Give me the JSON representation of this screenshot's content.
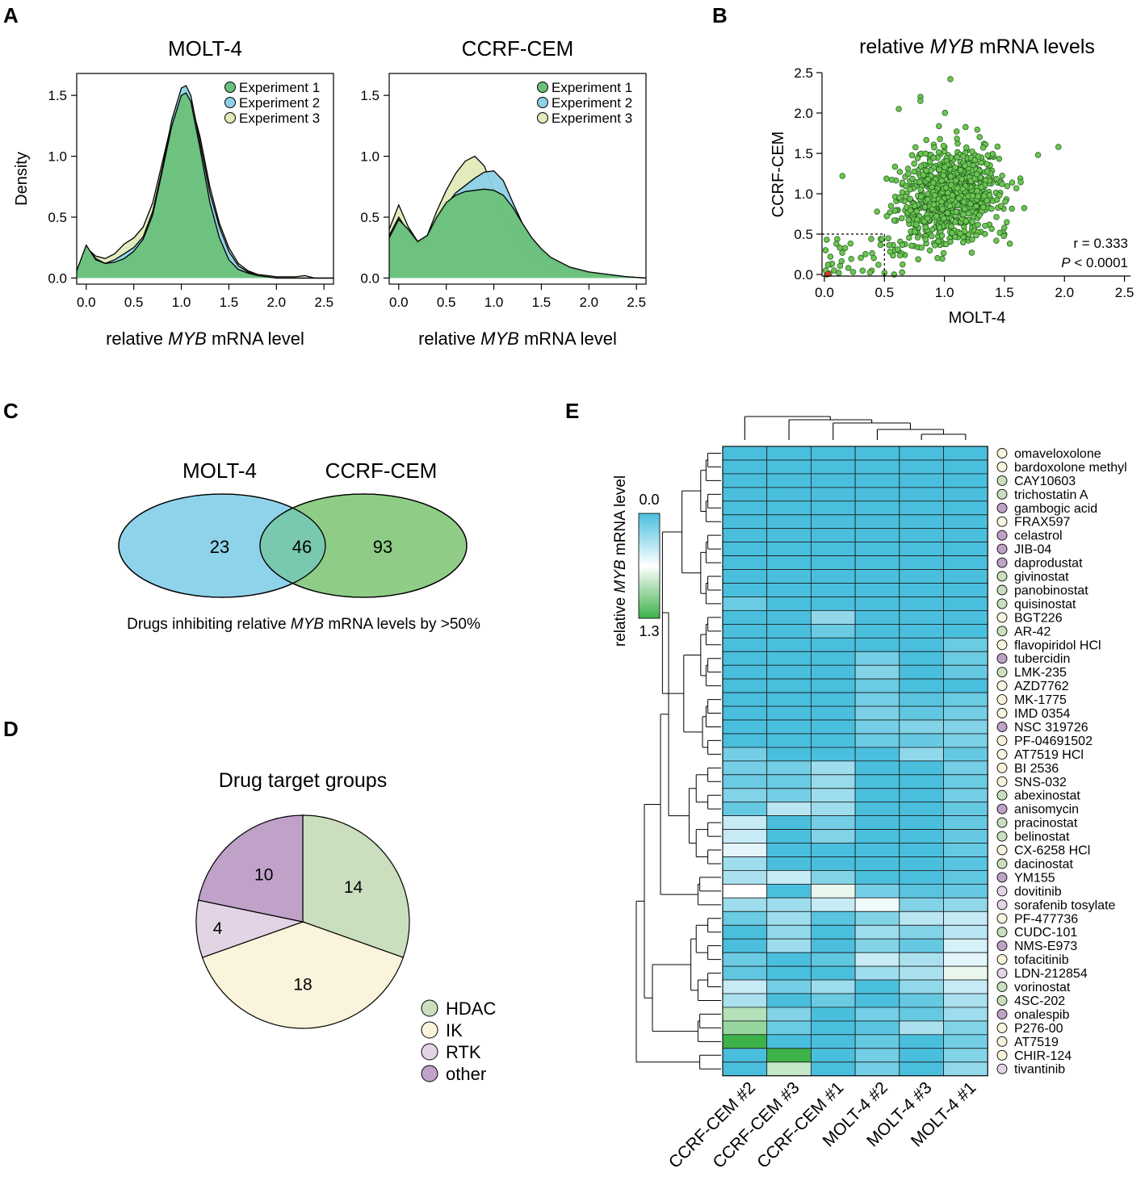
{
  "panel_labels": [
    "A",
    "B",
    "C",
    "D",
    "E"
  ],
  "colors": {
    "exp1": "#6cc17a",
    "exp2": "#8ed0e6",
    "exp3": "#dfeab8",
    "scatter": "#6cc452",
    "molt": "#8fd3ea",
    "ccrf": "#8fcd87",
    "overlap": "#79c8b0",
    "hdac": "#c9dfbd",
    "ik": "#faf4dc",
    "rtk": "#e2d4e4",
    "other": "#c0a1c8",
    "heat_low": "#4abfdd",
    "heat_mid": "#ffffff",
    "heat_high": "#3db14a"
  },
  "chart_data": [
    {
      "id": "A1",
      "type": "area",
      "title": "MOLT-4",
      "xlabel_pre": "relative ",
      "xlabel_italic": "MYB",
      "xlabel_post": " mRNA level",
      "ylabel": "Density",
      "xlim": [
        -0.1,
        2.6
      ],
      "ylim": [
        -0.05,
        1.68
      ],
      "xticks": [
        0.0,
        0.5,
        1.0,
        1.5,
        2.0,
        2.5
      ],
      "xtick_labels": [
        "0.0",
        "0.5",
        "1.0",
        "1.5",
        "2.0",
        "2.5"
      ],
      "yticks": [
        0.0,
        0.5,
        1.0,
        1.5
      ],
      "ytick_labels": [
        "0.0",
        "0.5",
        "1.0",
        "1.5"
      ],
      "legend": [
        "Experiment 1",
        "Experiment 2",
        "Experiment 3"
      ],
      "x": [
        -0.1,
        0.0,
        0.1,
        0.2,
        0.3,
        0.4,
        0.5,
        0.6,
        0.7,
        0.8,
        0.9,
        1.0,
        1.05,
        1.1,
        1.2,
        1.3,
        1.4,
        1.5,
        1.6,
        1.7,
        1.8,
        1.9,
        2.0,
        2.1,
        2.2,
        2.3,
        2.4,
        2.6
      ],
      "series": [
        {
          "name": "Experiment 3",
          "values": [
            0.06,
            0.25,
            0.18,
            0.16,
            0.2,
            0.28,
            0.33,
            0.42,
            0.62,
            0.95,
            1.28,
            1.48,
            1.5,
            1.45,
            1.15,
            0.75,
            0.45,
            0.25,
            0.12,
            0.06,
            0.03,
            0.02,
            0.01,
            0.01,
            0.01,
            0.02,
            0.0,
            0.0
          ]
        },
        {
          "name": "Experiment 2",
          "values": [
            0.05,
            0.26,
            0.16,
            0.12,
            0.15,
            0.2,
            0.25,
            0.34,
            0.55,
            0.9,
            1.3,
            1.56,
            1.58,
            1.5,
            1.1,
            0.7,
            0.42,
            0.22,
            0.1,
            0.05,
            0.02,
            0.01,
            0.0,
            0.0,
            0.0,
            0.0,
            0.0,
            0.0
          ]
        },
        {
          "name": "Experiment 1",
          "values": [
            0.06,
            0.27,
            0.15,
            0.12,
            0.13,
            0.16,
            0.22,
            0.32,
            0.52,
            0.88,
            1.25,
            1.5,
            1.52,
            1.45,
            1.05,
            0.62,
            0.33,
            0.15,
            0.07,
            0.04,
            0.02,
            0.01,
            0.0,
            0.0,
            0.0,
            0.0,
            0.0,
            0.0
          ]
        }
      ]
    },
    {
      "id": "A2",
      "type": "area",
      "title": "CCRF-CEM",
      "xlabel_pre": "relative ",
      "xlabel_italic": "MYB",
      "xlabel_post": " mRNA level",
      "ylabel": "",
      "xlim": [
        -0.1,
        2.6
      ],
      "ylim": [
        -0.05,
        1.68
      ],
      "xticks": [
        0.0,
        0.5,
        1.0,
        1.5,
        2.0,
        2.5
      ],
      "xtick_labels": [
        "0.0",
        "0.5",
        "1.0",
        "1.5",
        "2.0",
        "2.5"
      ],
      "yticks": [
        0.0,
        0.5,
        1.0,
        1.5
      ],
      "ytick_labels": [
        "0.0",
        "0.5",
        "1.0",
        "1.5"
      ],
      "legend": [
        "Experiment 1",
        "Experiment 2",
        "Experiment 3"
      ],
      "x": [
        -0.1,
        0.0,
        0.1,
        0.2,
        0.3,
        0.4,
        0.5,
        0.6,
        0.7,
        0.8,
        0.9,
        1.0,
        1.1,
        1.2,
        1.3,
        1.4,
        1.5,
        1.6,
        1.8,
        2.0,
        2.2,
        2.4,
        2.6
      ],
      "series": [
        {
          "name": "Experiment 3",
          "values": [
            0.4,
            0.6,
            0.42,
            0.3,
            0.35,
            0.55,
            0.72,
            0.86,
            0.96,
            1.0,
            0.92,
            0.72,
            0.55,
            0.4,
            0.28,
            0.2,
            0.14,
            0.1,
            0.05,
            0.03,
            0.02,
            0.01,
            0.0
          ]
        },
        {
          "name": "Experiment 2",
          "values": [
            0.35,
            0.5,
            0.38,
            0.28,
            0.33,
            0.48,
            0.6,
            0.7,
            0.76,
            0.82,
            0.87,
            0.88,
            0.8,
            0.62,
            0.45,
            0.32,
            0.22,
            0.15,
            0.08,
            0.04,
            0.02,
            0.01,
            0.0
          ]
        },
        {
          "name": "Experiment 1",
          "values": [
            0.33,
            0.48,
            0.4,
            0.3,
            0.35,
            0.5,
            0.62,
            0.68,
            0.71,
            0.72,
            0.73,
            0.72,
            0.68,
            0.58,
            0.45,
            0.33,
            0.24,
            0.17,
            0.09,
            0.05,
            0.03,
            0.01,
            0.0
          ]
        }
      ]
    },
    {
      "id": "B",
      "type": "scatter",
      "title_pre": "relative ",
      "title_italic": "MYB",
      "title_post": " mRNA levels",
      "xlabel": "MOLT-4",
      "ylabel": "CCRF-CEM",
      "xlim": [
        -0.02,
        2.55
      ],
      "ylim": [
        -0.02,
        2.5
      ],
      "xticks": [
        0.0,
        0.5,
        1.0,
        1.5,
        2.0,
        2.5
      ],
      "xtick_labels": [
        "0.0",
        "0.5",
        "1.0",
        "1.5",
        "2.0",
        "2.5"
      ],
      "yticks": [
        0.0,
        0.5,
        1.0,
        1.5,
        2.0,
        2.5
      ],
      "ytick_labels": [
        "0.0",
        "0.5",
        "1.0",
        "1.5",
        "2.0",
        "2.5"
      ],
      "threshold": [
        0.5,
        0.5
      ],
      "annot_r": "r = 0.333",
      "annot_p_italic": "P",
      "annot_p": " < 0.0001",
      "n_points": 850,
      "center": [
        1.05,
        0.95
      ],
      "spread": [
        0.22,
        0.28
      ],
      "outliers": [
        [
          1.05,
          2.42
        ],
        [
          0.8,
          2.2
        ],
        [
          0.62,
          2.05
        ],
        [
          0.8,
          2.15
        ],
        [
          1.95,
          1.58
        ],
        [
          1.78,
          1.48
        ],
        [
          0.02,
          0.0
        ],
        [
          0.02,
          0.02
        ],
        [
          0.04,
          0.01
        ],
        [
          0.01,
          0.05
        ],
        [
          0.03,
          0.12
        ],
        [
          0.05,
          0.22
        ],
        [
          0.01,
          0.3
        ],
        [
          0.08,
          0.05
        ],
        [
          0.12,
          0.02
        ],
        [
          0.2,
          0.08
        ],
        [
          0.1,
          0.38
        ],
        [
          0.15,
          1.22
        ],
        [
          0.02,
          0.43
        ],
        [
          0.45,
          0.12
        ],
        [
          0.5,
          0.02
        ]
      ]
    },
    {
      "id": "D",
      "type": "pie",
      "title": "Drug target groups",
      "labels": [
        "HDAC",
        "IK",
        "RTK",
        "other"
      ],
      "values": [
        14,
        18,
        4,
        10
      ],
      "value_labels": [
        "14",
        "18",
        "4",
        "10"
      ]
    },
    {
      "id": "E",
      "type": "heatmap",
      "colorbar_label_pre": "relative ",
      "colorbar_label_italic": "MYB",
      "colorbar_label_post": " mRNA level",
      "colorbar_min": "0.0",
      "colorbar_max": "1.3",
      "vmin": 0.0,
      "vmax": 1.3,
      "columns": [
        "CCRF-CEM #2",
        "CCRF-CEM #3",
        "CCRF-CEM #1",
        "MOLT-4 #2",
        "MOLT-4 #3",
        "MOLT-4 #1"
      ],
      "rows": [
        {
          "name": "omaveloxolone",
          "group": "IK",
          "values": [
            0,
            0,
            0,
            0,
            0,
            0
          ]
        },
        {
          "name": "bardoxolone methyl",
          "group": "IK",
          "values": [
            0,
            0,
            0,
            0,
            0,
            0
          ]
        },
        {
          "name": "CAY10603",
          "group": "HDAC",
          "values": [
            0,
            0,
            0,
            0,
            0,
            0
          ]
        },
        {
          "name": "trichostatin A",
          "group": "HDAC",
          "values": [
            0,
            0,
            0,
            0,
            0,
            0
          ]
        },
        {
          "name": "gambogic acid",
          "group": "other",
          "values": [
            0,
            0,
            0,
            0,
            0,
            0
          ]
        },
        {
          "name": "FRAX597",
          "group": "IK",
          "values": [
            0,
            0,
            0,
            0,
            0,
            0
          ]
        },
        {
          "name": "celastrol",
          "group": "other",
          "values": [
            0,
            0,
            0,
            0,
            0,
            0
          ]
        },
        {
          "name": "JIB-04",
          "group": "other",
          "values": [
            0,
            0,
            0,
            0,
            0,
            0
          ]
        },
        {
          "name": "daprodustat",
          "group": "other",
          "values": [
            0,
            0,
            0,
            0,
            0,
            0
          ]
        },
        {
          "name": "givinostat",
          "group": "HDAC",
          "values": [
            0,
            0,
            0,
            0,
            0,
            0
          ]
        },
        {
          "name": "panobinostat",
          "group": "HDAC",
          "values": [
            0,
            0,
            0,
            0,
            0,
            0
          ]
        },
        {
          "name": "quisinostat",
          "group": "HDAC",
          "values": [
            0.12,
            0,
            0,
            0,
            0,
            0
          ]
        },
        {
          "name": "BGT226",
          "group": "IK",
          "values": [
            0,
            0,
            0.25,
            0,
            0,
            0
          ]
        },
        {
          "name": "AR-42",
          "group": "HDAC",
          "values": [
            0,
            0,
            0.12,
            0,
            0,
            0
          ]
        },
        {
          "name": "flavopiridol HCl",
          "group": "IK",
          "values": [
            0,
            0,
            0,
            0,
            0,
            0.12
          ]
        },
        {
          "name": "tubercidin",
          "group": "other",
          "values": [
            0,
            0,
            0,
            0.15,
            0,
            0.12
          ]
        },
        {
          "name": "LMK-235",
          "group": "HDAC",
          "values": [
            0,
            0,
            0,
            0.2,
            0,
            0.1
          ]
        },
        {
          "name": "AZD7762",
          "group": "IK",
          "values": [
            0,
            0,
            0,
            0.12,
            0,
            0
          ]
        },
        {
          "name": "MK-1775",
          "group": "IK",
          "values": [
            0,
            0,
            0,
            0.15,
            0.05,
            0.12
          ]
        },
        {
          "name": "IMD 0354",
          "group": "IK",
          "values": [
            0,
            0,
            0,
            0.18,
            0.08,
            0.15
          ]
        },
        {
          "name": "NSC 319726",
          "group": "other",
          "values": [
            0,
            0,
            0,
            0.15,
            0.2,
            0.2
          ]
        },
        {
          "name": "PF-04691502",
          "group": "IK",
          "values": [
            0,
            0,
            0,
            0.12,
            0.1,
            0.18
          ]
        },
        {
          "name": "AT7519 HCl",
          "group": "IK",
          "values": [
            0.15,
            0,
            0,
            0,
            0.25,
            0.1
          ]
        },
        {
          "name": "BI 2536",
          "group": "IK",
          "values": [
            0.15,
            0.15,
            0.3,
            0,
            0,
            0.15
          ]
        },
        {
          "name": "SNS-032",
          "group": "IK",
          "values": [
            0.12,
            0.12,
            0.28,
            0,
            0,
            0.12
          ]
        },
        {
          "name": "abexinostat",
          "group": "HDAC",
          "values": [
            0.2,
            0.15,
            0.3,
            0,
            0,
            0.15
          ]
        },
        {
          "name": "anisomycin",
          "group": "other",
          "values": [
            0.1,
            0.4,
            0.3,
            0,
            0,
            0.1
          ]
        },
        {
          "name": "pracinostat",
          "group": "HDAC",
          "values": [
            0.45,
            0,
            0.15,
            0,
            0,
            0.1
          ]
        },
        {
          "name": "belinostat",
          "group": "HDAC",
          "values": [
            0.45,
            0,
            0.2,
            0,
            0,
            0.1
          ]
        },
        {
          "name": "CX-6258 HCl",
          "group": "IK",
          "values": [
            0.55,
            0,
            0,
            0,
            0,
            0.1
          ]
        },
        {
          "name": "dacinostat",
          "group": "HDAC",
          "values": [
            0.3,
            0,
            0,
            0,
            0,
            0.05
          ]
        },
        {
          "name": "YM155",
          "group": "other",
          "values": [
            0.35,
            0.45,
            0.2,
            0,
            0,
            0.08
          ]
        },
        {
          "name": "dovitinib",
          "group": "RTK",
          "values": [
            0.65,
            0,
            0.72,
            0.15,
            0.05,
            0.1
          ]
        },
        {
          "name": "sorafenib tosylate",
          "group": "RTK",
          "values": [
            0.3,
            0.3,
            0.45,
            0.6,
            0.2,
            0.25
          ]
        },
        {
          "name": "PF-477736",
          "group": "IK",
          "values": [
            0.12,
            0.3,
            0.05,
            0.2,
            0.4,
            0.45
          ]
        },
        {
          "name": "CUDC-101",
          "group": "HDAC",
          "values": [
            0,
            0.25,
            0,
            0.3,
            0.2,
            0.4
          ]
        },
        {
          "name": "NMS-E973",
          "group": "other",
          "values": [
            0,
            0.3,
            0,
            0.2,
            0.1,
            0.5
          ]
        },
        {
          "name": "tofacitinib",
          "group": "IK",
          "values": [
            0.12,
            0,
            0.08,
            0.45,
            0.35,
            0.55
          ]
        },
        {
          "name": "LDN-212854",
          "group": "RTK",
          "values": [
            0.08,
            0,
            0,
            0.3,
            0.35,
            0.72
          ]
        },
        {
          "name": "vorinostat",
          "group": "HDAC",
          "values": [
            0.45,
            0.15,
            0.3,
            0,
            0.25,
            0.45
          ]
        },
        {
          "name": "4SC-202",
          "group": "HDAC",
          "values": [
            0.35,
            0,
            0.12,
            0,
            0.1,
            0.35
          ]
        },
        {
          "name": "onalespib",
          "group": "other",
          "values": [
            0.9,
            0.2,
            0,
            0.15,
            0.1,
            0.3
          ]
        },
        {
          "name": "P276-00",
          "group": "IK",
          "values": [
            1.0,
            0.12,
            0,
            0.05,
            0.35,
            0.2
          ]
        },
        {
          "name": "AT7519",
          "group": "IK",
          "values": [
            1.3,
            0,
            0,
            0.1,
            0,
            0.15
          ]
        },
        {
          "name": "CHIR-124",
          "group": "IK",
          "values": [
            0,
            1.3,
            0,
            0.15,
            0,
            0.2
          ]
        },
        {
          "name": "tivantinib",
          "group": "RTK",
          "values": [
            0,
            0.85,
            0,
            0.15,
            0,
            0.25
          ]
        }
      ]
    }
  ],
  "venn": {
    "set_a_label": "MOLT-4",
    "set_b_label": "CCRF-CEM",
    "only_a": "23",
    "both": "46",
    "only_b": "93",
    "caption_pre": "Drugs inhibiting relative ",
    "caption_italic": "MYB",
    "caption_post": " mRNA levels by >50%"
  },
  "pie_legend": [
    {
      "label": "HDAC",
      "key": "hdac"
    },
    {
      "label": "IK",
      "key": "ik"
    },
    {
      "label": "RTK",
      "key": "rtk"
    },
    {
      "label": "other",
      "key": "other"
    }
  ]
}
